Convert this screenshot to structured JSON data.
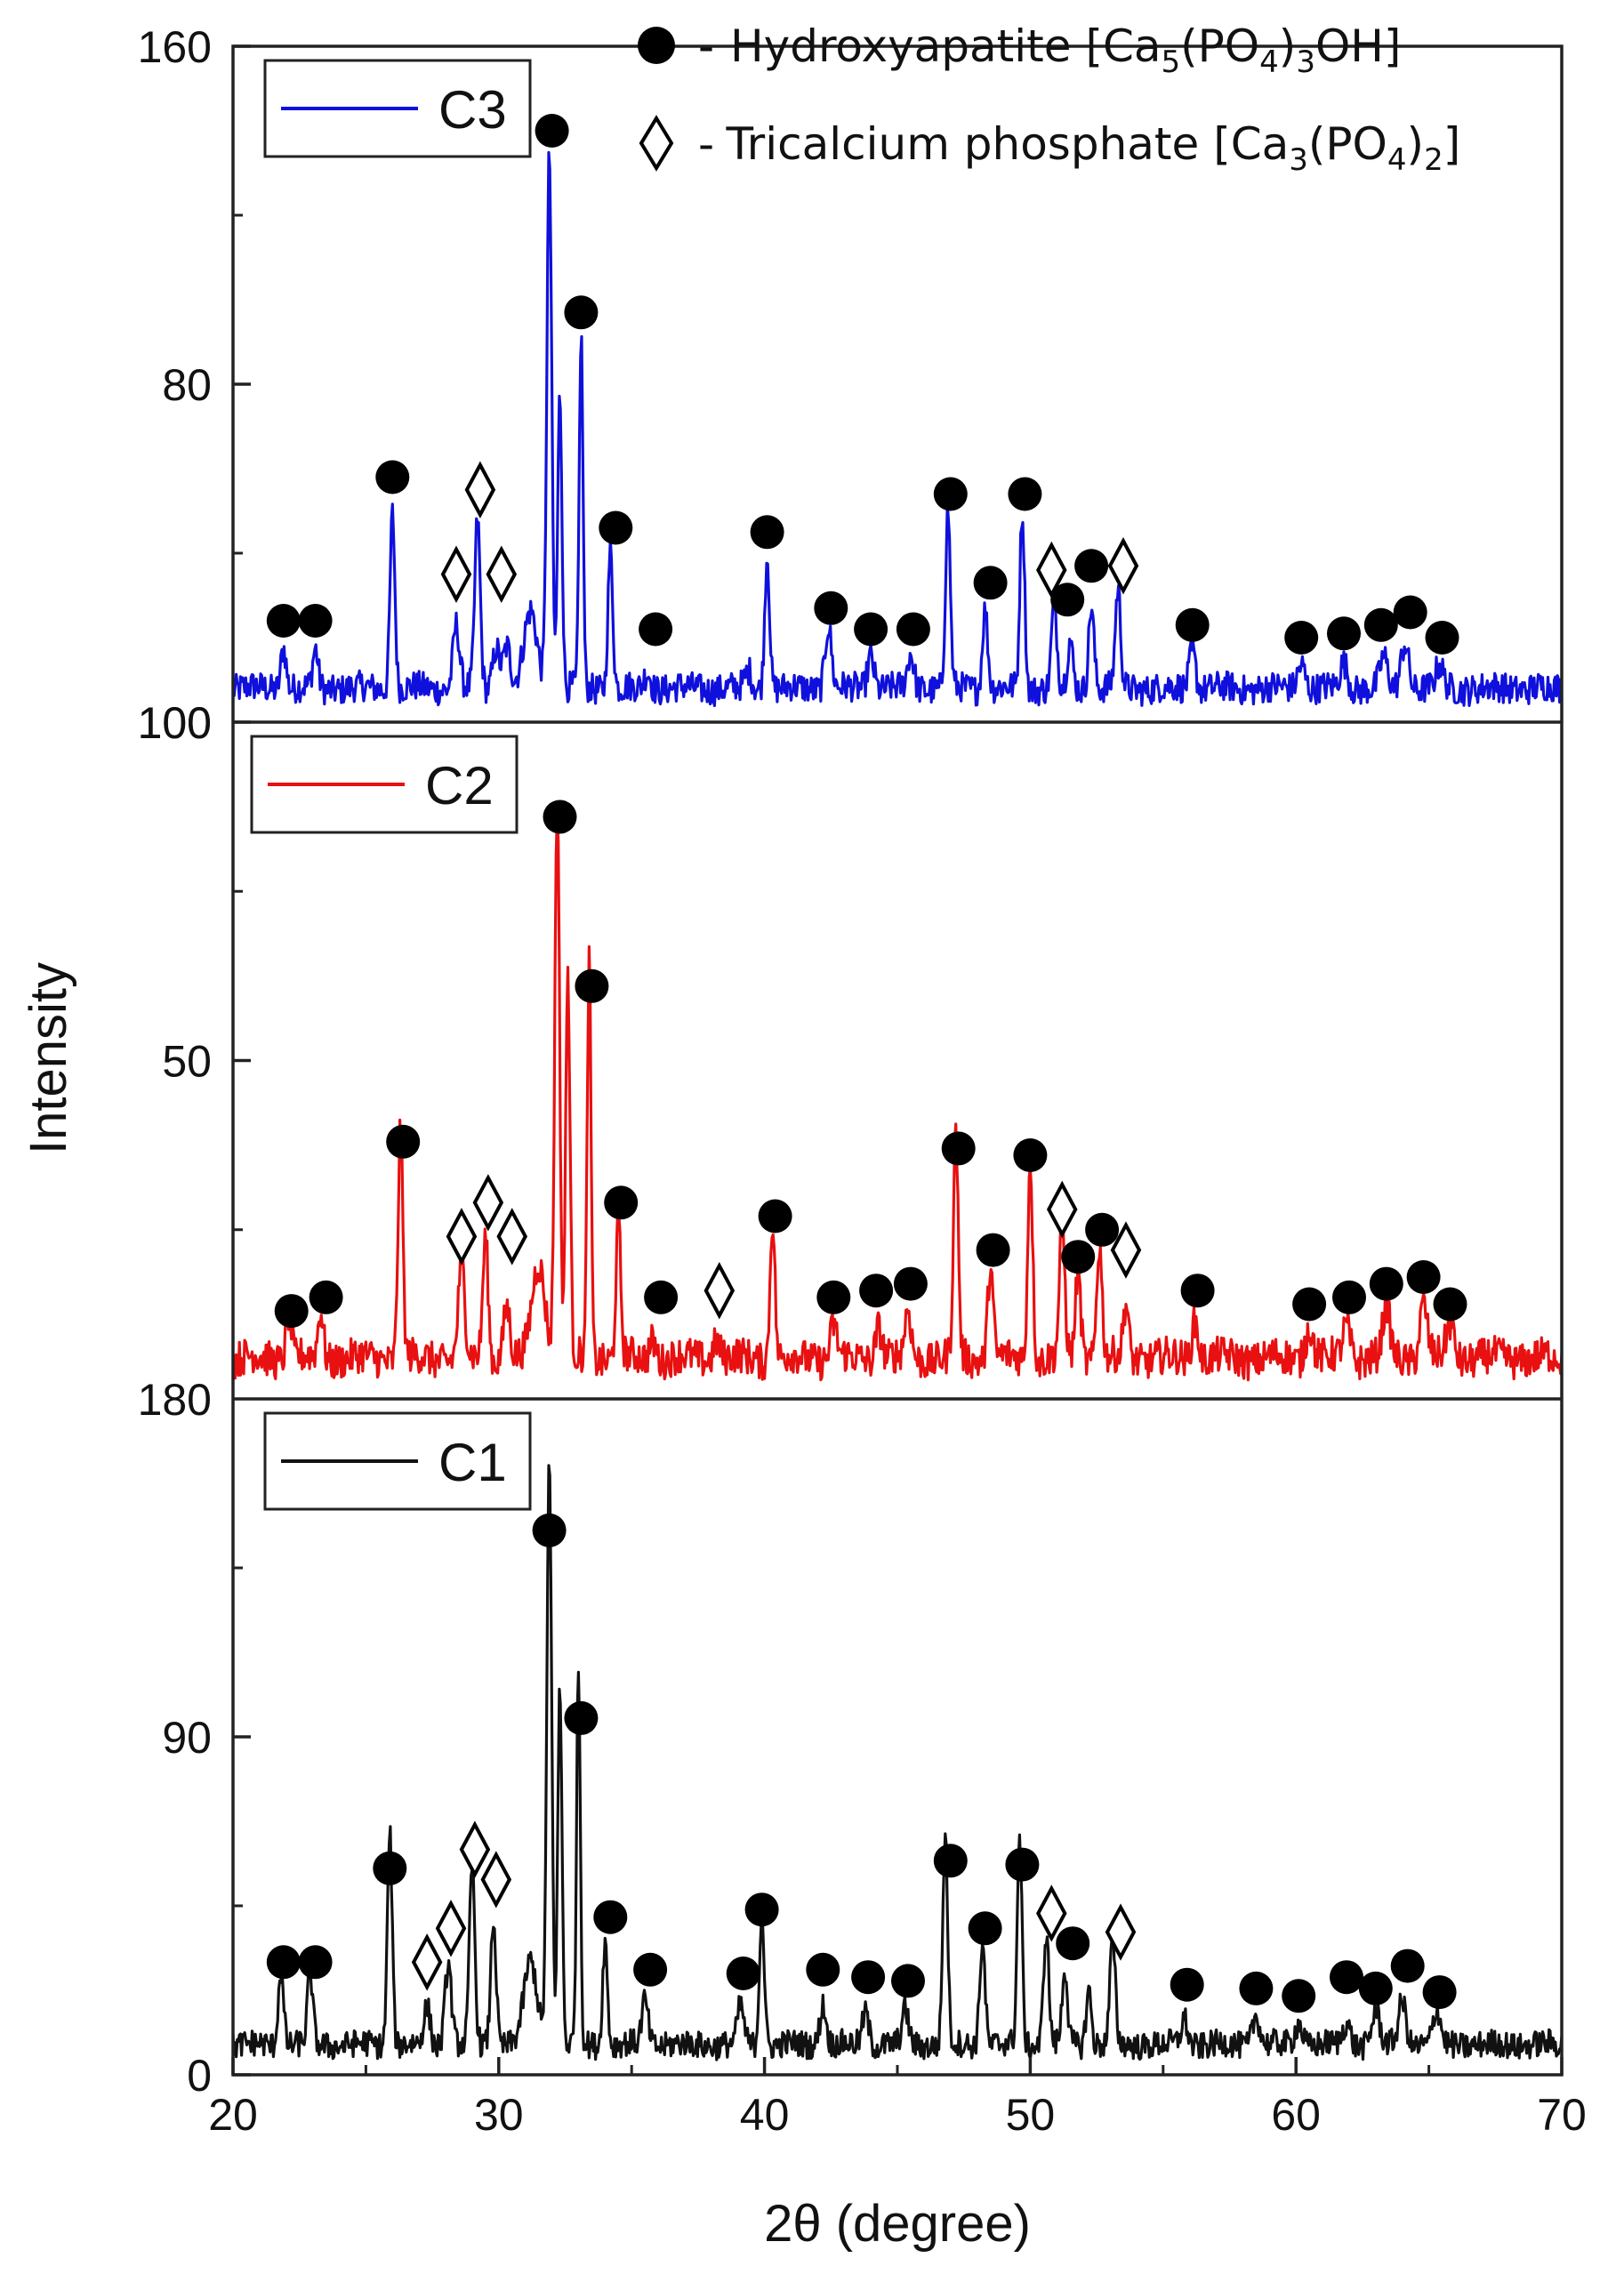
{
  "chart_data": {
    "type": "line",
    "title": "",
    "xlabel": "2θ (degree)",
    "ylabel": "Intensity",
    "xlim": [
      20,
      70
    ],
    "xticks": [
      20,
      30,
      40,
      50,
      60,
      70
    ],
    "marker_key": [
      {
        "symbol": "filled-circle",
        "separator": "-",
        "text": "Hydroxyapatite",
        "formula": [
          [
            "[Ca",
            ""
          ],
          [
            "5",
            "sub"
          ],
          [
            "(PO",
            ""
          ],
          [
            "4",
            "sub"
          ],
          [
            ")",
            ""
          ],
          [
            "3",
            "sub"
          ],
          [
            "OH]",
            ""
          ]
        ]
      },
      {
        "symbol": "open-diamond",
        "separator": "-",
        "text": "Tricalcium phosphate",
        "formula": [
          [
            "[Ca",
            ""
          ],
          [
            "3",
            "sub"
          ],
          [
            "(PO",
            ""
          ],
          [
            "4",
            "sub"
          ],
          [
            ")",
            ""
          ],
          [
            "2",
            "sub"
          ],
          [
            "]",
            ""
          ]
        ]
      }
    ],
    "panels": [
      {
        "name": "C3",
        "color": "#1010dc",
        "ylim": [
          0,
          160
        ],
        "yticks": [
          80,
          160
        ],
        "ytick_labels": [
          "80",
          "160"
        ],
        "bottom_label": "100",
        "baseline": 8,
        "peaks": [
          [
            21.9,
            10,
            0.1
          ],
          [
            23.1,
            9,
            0.1
          ],
          [
            26.0,
            42,
            0.09
          ],
          [
            28.4,
            15,
            0.12
          ],
          [
            29.2,
            40,
            0.1
          ],
          [
            29.9,
            10,
            0.12
          ],
          [
            30.3,
            10,
            0.14
          ],
          [
            31.2,
            18,
            0.25
          ],
          [
            31.9,
            127,
            0.09
          ],
          [
            32.3,
            70,
            0.08
          ],
          [
            33.1,
            84,
            0.07
          ],
          [
            34.2,
            33,
            0.09
          ],
          [
            35.6,
            4,
            0.12
          ],
          [
            39.4,
            4,
            0.12
          ],
          [
            40.1,
            32,
            0.09
          ],
          [
            42.4,
            15,
            0.12
          ],
          [
            44.0,
            8,
            0.12
          ],
          [
            45.5,
            8,
            0.12
          ],
          [
            46.9,
            42,
            0.09
          ],
          [
            48.3,
            19,
            0.1
          ],
          [
            49.7,
            42,
            0.09
          ],
          [
            50.9,
            20,
            0.1
          ],
          [
            51.5,
            11,
            0.1
          ],
          [
            52.3,
            20,
            0.1
          ],
          [
            53.3,
            23,
            0.1
          ],
          [
            56.1,
            9,
            0.12
          ],
          [
            60.2,
            6,
            0.14
          ],
          [
            61.8,
            6,
            0.14
          ],
          [
            63.3,
            7,
            0.14
          ],
          [
            64.1,
            11,
            0.14
          ],
          [
            65.4,
            5,
            0.14
          ]
        ],
        "circle_markers": [
          [
            21.9,
            24
          ],
          [
            23.1,
            24
          ],
          [
            26.0,
            58
          ],
          [
            32.0,
            140
          ],
          [
            33.1,
            97
          ],
          [
            34.4,
            46
          ],
          [
            35.9,
            22
          ],
          [
            40.1,
            45
          ],
          [
            42.5,
            27
          ],
          [
            44.0,
            22
          ],
          [
            45.6,
            22
          ],
          [
            47.0,
            54
          ],
          [
            48.5,
            33
          ],
          [
            49.8,
            54
          ],
          [
            51.4,
            29
          ],
          [
            52.3,
            37
          ],
          [
            56.1,
            23
          ],
          [
            60.2,
            20
          ],
          [
            61.8,
            21
          ],
          [
            63.2,
            23
          ],
          [
            64.3,
            26
          ],
          [
            65.5,
            20
          ]
        ],
        "diamond_markers": [
          [
            28.4,
            35
          ],
          [
            29.3,
            55
          ],
          [
            30.1,
            35
          ],
          [
            50.8,
            36
          ],
          [
            53.5,
            37
          ]
        ]
      },
      {
        "name": "C2",
        "color": "#e81010",
        "ylim": [
          0,
          100
        ],
        "yticks": [
          50,
          100
        ],
        "ytick_labels": [
          "50",
          "100"
        ],
        "bottom_label": "180",
        "baseline": 6,
        "peaks": [
          [
            22.1,
            7,
            0.1
          ],
          [
            23.3,
            7,
            0.1
          ],
          [
            26.3,
            34,
            0.09
          ],
          [
            28.6,
            14,
            0.12
          ],
          [
            29.5,
            18,
            0.1
          ],
          [
            30.3,
            8,
            0.12
          ],
          [
            31.5,
            14,
            0.25
          ],
          [
            32.2,
            83,
            0.09
          ],
          [
            32.6,
            57,
            0.08
          ],
          [
            33.4,
            59,
            0.07
          ],
          [
            34.5,
            20,
            0.09
          ],
          [
            35.8,
            3,
            0.12
          ],
          [
            38.2,
            3,
            0.12
          ],
          [
            40.3,
            21,
            0.09
          ],
          [
            42.6,
            5,
            0.12
          ],
          [
            44.3,
            5,
            0.12
          ],
          [
            45.4,
            7,
            0.12
          ],
          [
            47.2,
            33,
            0.09
          ],
          [
            48.5,
            14,
            0.1
          ],
          [
            50.0,
            30,
            0.09
          ],
          [
            51.2,
            20,
            0.1
          ],
          [
            51.8,
            13,
            0.1
          ],
          [
            52.6,
            17,
            0.1
          ],
          [
            53.6,
            8,
            0.1
          ],
          [
            56.2,
            6,
            0.12
          ],
          [
            60.5,
            5,
            0.14
          ],
          [
            61.9,
            5,
            0.14
          ],
          [
            63.4,
            7,
            0.14
          ],
          [
            64.8,
            8,
            0.14
          ],
          [
            65.8,
            5,
            0.14
          ]
        ],
        "circle_markers": [
          [
            22.2,
            13
          ],
          [
            23.5,
            15
          ],
          [
            26.4,
            38
          ],
          [
            32.3,
            86
          ],
          [
            33.5,
            61
          ],
          [
            34.6,
            29
          ],
          [
            36.1,
            15
          ],
          [
            40.4,
            27
          ],
          [
            42.6,
            15
          ],
          [
            44.2,
            16
          ],
          [
            45.5,
            17
          ],
          [
            47.3,
            37
          ],
          [
            48.6,
            22
          ],
          [
            50.0,
            36
          ],
          [
            51.8,
            21
          ],
          [
            52.7,
            25
          ],
          [
            56.3,
            16
          ],
          [
            60.5,
            14
          ],
          [
            62.0,
            15
          ],
          [
            63.4,
            17
          ],
          [
            64.8,
            18
          ],
          [
            65.8,
            14
          ]
        ],
        "diamond_markers": [
          [
            28.6,
            24
          ],
          [
            29.6,
            29
          ],
          [
            30.5,
            24
          ],
          [
            38.3,
            16
          ],
          [
            51.2,
            28
          ],
          [
            53.6,
            22
          ]
        ]
      },
      {
        "name": "C1",
        "color": "#111111",
        "ylim": [
          0,
          180
        ],
        "yticks": [
          0,
          90
        ],
        "ytick_labels": [
          "0",
          "90"
        ],
        "bottom_label": "0",
        "baseline": 8,
        "peaks": [
          [
            21.8,
            20,
            0.1
          ],
          [
            22.9,
            19,
            0.1
          ],
          [
            25.9,
            57,
            0.09
          ],
          [
            27.3,
            10,
            0.12
          ],
          [
            28.1,
            22,
            0.12
          ],
          [
            29.0,
            47,
            0.1
          ],
          [
            29.8,
            34,
            0.1
          ],
          [
            31.2,
            22,
            0.25
          ],
          [
            31.9,
            155,
            0.09
          ],
          [
            32.3,
            95,
            0.08
          ],
          [
            33.0,
            101,
            0.07
          ],
          [
            34.0,
            28,
            0.09
          ],
          [
            35.5,
            12,
            0.12
          ],
          [
            39.1,
            10,
            0.12
          ],
          [
            39.9,
            36,
            0.09
          ],
          [
            42.2,
            11,
            0.12
          ],
          [
            43.8,
            9,
            0.12
          ],
          [
            45.3,
            9,
            0.12
          ],
          [
            46.8,
            56,
            0.09
          ],
          [
            48.2,
            28,
            0.1
          ],
          [
            49.6,
            55,
            0.09
          ],
          [
            50.6,
            30,
            0.1
          ],
          [
            51.3,
            20,
            0.1
          ],
          [
            52.2,
            15,
            0.1
          ],
          [
            53.1,
            28,
            0.1
          ],
          [
            55.8,
            7,
            0.12
          ],
          [
            58.5,
            8,
            0.14
          ],
          [
            60.1,
            6,
            0.14
          ],
          [
            61.9,
            6,
            0.14
          ],
          [
            63.0,
            9,
            0.14
          ],
          [
            64.0,
            12,
            0.14
          ],
          [
            65.3,
            9,
            0.14
          ]
        ],
        "circle_markers": [
          [
            21.9,
            30
          ],
          [
            23.1,
            30
          ],
          [
            25.9,
            55
          ],
          [
            31.9,
            145
          ],
          [
            33.1,
            95
          ],
          [
            34.2,
            42
          ],
          [
            35.7,
            28
          ],
          [
            39.2,
            27
          ],
          [
            39.9,
            44
          ],
          [
            42.2,
            28
          ],
          [
            43.9,
            26
          ],
          [
            45.4,
            25
          ],
          [
            47.0,
            57
          ],
          [
            48.3,
            39
          ],
          [
            49.7,
            56
          ],
          [
            51.6,
            35
          ],
          [
            55.9,
            24
          ],
          [
            58.5,
            23
          ],
          [
            60.1,
            21
          ],
          [
            61.9,
            26
          ],
          [
            63.0,
            23
          ],
          [
            64.2,
            29
          ],
          [
            65.4,
            22
          ]
        ],
        "diamond_markers": [
          [
            27.3,
            30
          ],
          [
            28.2,
            39
          ],
          [
            29.1,
            60
          ],
          [
            29.9,
            52
          ],
          [
            50.8,
            43
          ],
          [
            53.4,
            38
          ]
        ]
      }
    ]
  }
}
